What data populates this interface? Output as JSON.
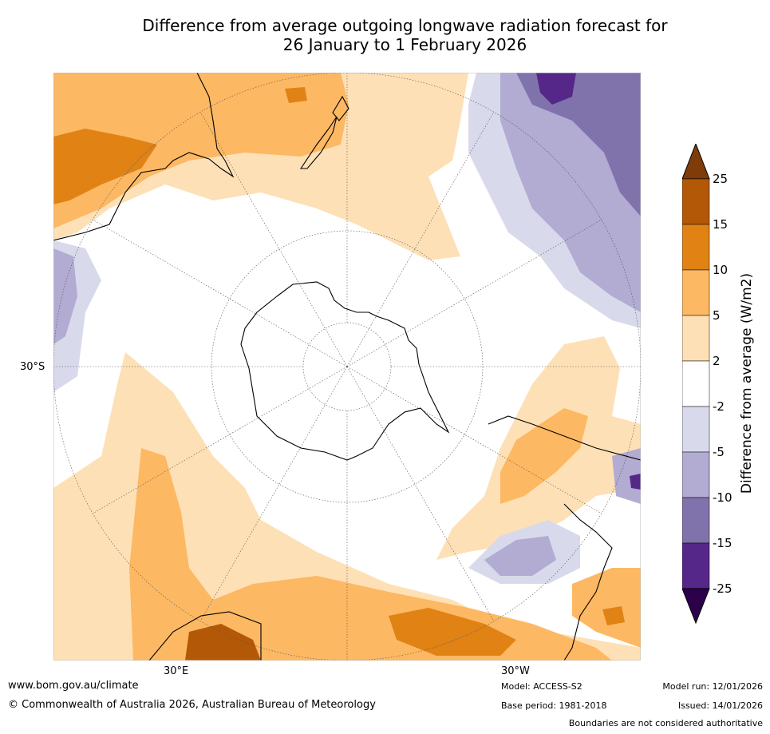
{
  "title_line1": "Difference from average outgoing longwave radiation forecast for",
  "title_line2": "26 January to 1 February 2026",
  "map": {
    "lat_label": "30°S",
    "lon_label_east": "30°E",
    "lon_label_west": "30°W"
  },
  "colorbar": {
    "title": "Difference from average (W/m2)",
    "ticks": [
      "25",
      "15",
      "10",
      "5",
      "2",
      "-2",
      "-5",
      "-10",
      "-15",
      "-25"
    ],
    "colors": {
      "over": "#7f3b08",
      "c15_25": "#b35806",
      "c10_15": "#e08214",
      "c5_10": "#fdb863",
      "c2_5": "#fee0b6",
      "neutral": "#ffffff",
      "cm5_m2": "#d8daeb",
      "cm10_m5": "#b2abd2",
      "cm15_m10": "#8073ac",
      "cm25_m15": "#542788",
      "under": "#2d004b"
    }
  },
  "footer": {
    "website": "www.bom.gov.au/climate",
    "copyright": "© Commonwealth of Australia 2026, Australian Bureau of Meteorology",
    "model": "Model: ACCESS-S2",
    "base_period": "Base period: 1981-2018",
    "model_run": "Model run: 12/01/2026",
    "issued": "Issued: 14/01/2026",
    "disclaimer": "Boundaries are not considered authoritative"
  }
}
